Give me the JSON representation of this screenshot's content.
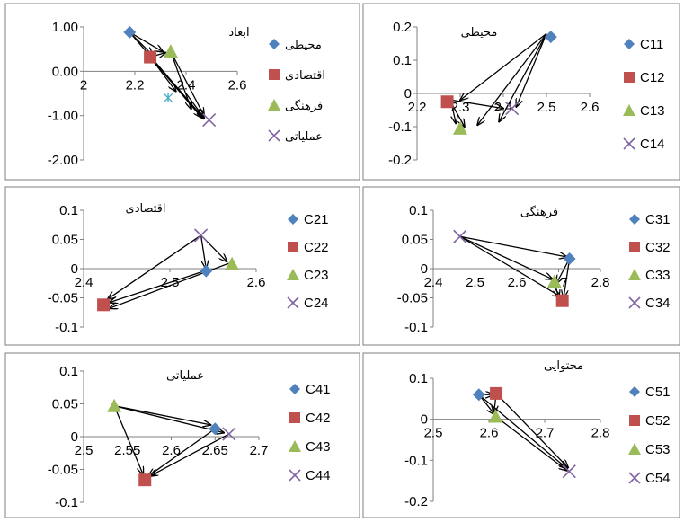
{
  "colors": {
    "series1": "#4f81bd",
    "series2": "#c0504d",
    "series3": "#9bbb59",
    "series4": "#8064a2",
    "arrow": "#000000",
    "frame": "#7f7f7f"
  },
  "chart_data": [
    {
      "type": "scatter",
      "title": "ابعاد",
      "xlabel": "",
      "ylabel": "",
      "xlim": [
        2,
        2.6
      ],
      "ylim": [
        -2,
        1
      ],
      "xticks": [
        "2",
        "2.2",
        "2.4",
        "2.6"
      ],
      "yticks": [
        "1.00",
        "0.00",
        "-1.00",
        "-2.00"
      ],
      "legend_position": "right",
      "series": [
        {
          "name": "محیطی",
          "marker": "diamond",
          "x": 2.18,
          "y": 0.88
        },
        {
          "name": "اقتصادی",
          "marker": "square",
          "x": 2.26,
          "y": 0.32
        },
        {
          "name": "فرهنگی",
          "marker": "triangle",
          "x": 2.34,
          "y": 0.45
        },
        {
          "name": "عملیاتی",
          "marker": "x",
          "x": 2.49,
          "y": -1.1
        }
      ],
      "extra_markers": [
        {
          "marker": "asterisk",
          "x": 2.33,
          "y": -0.6
        }
      ],
      "arrows": [
        [
          2.18,
          0.88,
          2.27,
          0.36
        ],
        [
          2.18,
          0.88,
          2.31,
          0.44
        ],
        [
          2.18,
          0.88,
          2.47,
          -1.07
        ],
        [
          2.26,
          0.32,
          2.32,
          0.42
        ],
        [
          2.26,
          0.32,
          2.36,
          -0.45
        ],
        [
          2.26,
          0.32,
          2.46,
          -1.04
        ],
        [
          2.34,
          0.45,
          2.42,
          -0.85
        ],
        [
          2.34,
          0.45,
          2.47,
          -1.0
        ],
        [
          2.4,
          -0.5,
          2.47,
          -1.05
        ]
      ]
    },
    {
      "type": "scatter",
      "title": "محیطی",
      "xlabel": "",
      "ylabel": "",
      "xlim": [
        2.2,
        2.6
      ],
      "ylim": [
        -0.2,
        0.2
      ],
      "xticks": [
        "2.2",
        "2.3",
        "2.4",
        "2.5",
        "2.6"
      ],
      "yticks": [
        "0.2",
        "0.1",
        "0",
        "-0.1",
        "-0.2"
      ],
      "legend_position": "right",
      "series": [
        {
          "name": "C11",
          "marker": "diamond",
          "x": 2.51,
          "y": 0.17
        },
        {
          "name": "C12",
          "marker": "square",
          "x": 2.27,
          "y": -0.025
        },
        {
          "name": "C13",
          "marker": "triangle",
          "x": 2.3,
          "y": -0.105
        },
        {
          "name": "C14",
          "marker": "x",
          "x": 2.42,
          "y": -0.045
        }
      ],
      "arrows": [
        [
          2.5,
          0.18,
          2.3,
          -0.02
        ],
        [
          2.5,
          0.18,
          2.34,
          -0.095
        ],
        [
          2.5,
          0.18,
          2.39,
          -0.085
        ],
        [
          2.5,
          0.18,
          2.43,
          -0.04
        ],
        [
          2.28,
          -0.02,
          2.4,
          -0.045
        ],
        [
          2.28,
          -0.03,
          2.29,
          -0.09
        ],
        [
          2.28,
          -0.03,
          2.31,
          -0.1
        ]
      ]
    },
    {
      "type": "scatter",
      "title": "اقتصادی",
      "xlabel": "",
      "ylabel": "",
      "xlim": [
        2.4,
        2.6
      ],
      "ylim": [
        -0.1,
        0.1
      ],
      "xticks": [
        "2.4",
        "2.5",
        "2.6"
      ],
      "yticks": [
        "0.1",
        "0.05",
        "0",
        "-0.05",
        "-0.1"
      ],
      "legend_position": "right",
      "series": [
        {
          "name": "C21",
          "marker": "diamond",
          "x": 2.542,
          "y": -0.004
        },
        {
          "name": "C22",
          "marker": "square",
          "x": 2.423,
          "y": -0.062
        },
        {
          "name": "C23",
          "marker": "triangle",
          "x": 2.572,
          "y": 0.008
        },
        {
          "name": "C24",
          "marker": "x",
          "x": 2.536,
          "y": 0.057
        }
      ],
      "arrows": [
        [
          2.536,
          0.057,
          2.428,
          -0.052
        ],
        [
          2.536,
          0.057,
          2.542,
          0.0
        ],
        [
          2.536,
          0.057,
          2.566,
          0.012
        ],
        [
          2.54,
          -0.004,
          2.43,
          -0.058
        ],
        [
          2.57,
          0.01,
          2.43,
          -0.068
        ]
      ]
    },
    {
      "type": "scatter",
      "title": "فرهنگی",
      "xlabel": "",
      "ylabel": "",
      "xlim": [
        2.4,
        2.8
      ],
      "ylim": [
        -0.1,
        0.1
      ],
      "xticks": [
        "2.4",
        "2.5",
        "2.6",
        "2.7",
        "2.8"
      ],
      "yticks": [
        "0.1",
        "0.05",
        "0",
        "-0.05",
        "-0.1"
      ],
      "legend_position": "right",
      "series": [
        {
          "name": "C31",
          "marker": "diamond",
          "x": 2.726,
          "y": 0.017
        },
        {
          "name": "C32",
          "marker": "square",
          "x": 2.709,
          "y": -0.055
        },
        {
          "name": "C33",
          "marker": "triangle",
          "x": 2.69,
          "y": -0.022
        },
        {
          "name": "C34",
          "marker": "x",
          "x": 2.464,
          "y": 0.055
        }
      ],
      "arrows": [
        [
          2.464,
          0.055,
          2.72,
          0.02
        ],
        [
          2.464,
          0.055,
          2.705,
          -0.048
        ],
        [
          2.464,
          0.055,
          2.685,
          -0.018
        ],
        [
          2.726,
          0.017,
          2.695,
          -0.025
        ],
        [
          2.726,
          0.017,
          2.712,
          -0.05
        ],
        [
          2.69,
          -0.022,
          2.7,
          -0.05
        ]
      ]
    },
    {
      "type": "scatter",
      "title": "عملیاتی",
      "xlabel": "",
      "ylabel": "",
      "xlim": [
        2.5,
        2.7
      ],
      "ylim": [
        -0.1,
        0.1
      ],
      "xticks": [
        "2.5",
        "2.55",
        "2.6",
        "2.65",
        "2.7"
      ],
      "yticks": [
        "0.1",
        "0.05",
        "0",
        "-0.05",
        "-0.1"
      ],
      "legend_position": "right",
      "series": [
        {
          "name": "C41",
          "marker": "diamond",
          "x": 2.65,
          "y": 0.012
        },
        {
          "name": "C42",
          "marker": "square",
          "x": 2.57,
          "y": -0.066
        },
        {
          "name": "C43",
          "marker": "triangle",
          "x": 2.535,
          "y": 0.047
        },
        {
          "name": "C44",
          "marker": "x",
          "x": 2.666,
          "y": 0.004
        }
      ],
      "arrows": [
        [
          2.535,
          0.047,
          2.645,
          0.018
        ],
        [
          2.535,
          0.047,
          2.568,
          -0.058
        ],
        [
          2.535,
          0.047,
          2.66,
          0.006
        ],
        [
          2.65,
          0.012,
          2.574,
          -0.06
        ],
        [
          2.666,
          0.004,
          2.576,
          -0.06
        ]
      ]
    },
    {
      "type": "scatter",
      "title": "محتوایی",
      "xlabel": "",
      "ylabel": "",
      "xlim": [
        2.5,
        2.8
      ],
      "ylim": [
        -0.2,
        0.1
      ],
      "xticks": [
        "2.5",
        "2.6",
        "2.7",
        "2.8"
      ],
      "yticks": [
        "0.1",
        "0",
        "-0.1",
        "-0.2"
      ],
      "legend_position": "right",
      "series": [
        {
          "name": "C51",
          "marker": "diamond",
          "x": 2.582,
          "y": 0.06
        },
        {
          "name": "C52",
          "marker": "square",
          "x": 2.613,
          "y": 0.063
        },
        {
          "name": "C53",
          "marker": "triangle",
          "x": 2.612,
          "y": 0.007
        },
        {
          "name": "C54",
          "marker": "x",
          "x": 2.744,
          "y": -0.127
        }
      ],
      "arrows": [
        [
          2.582,
          0.06,
          2.608,
          0.06
        ],
        [
          2.582,
          0.06,
          2.61,
          0.012
        ],
        [
          2.582,
          0.06,
          2.74,
          -0.12
        ],
        [
          2.613,
          0.063,
          2.609,
          0.015
        ],
        [
          2.613,
          0.063,
          2.742,
          -0.118
        ],
        [
          2.612,
          0.007,
          2.74,
          -0.125
        ]
      ]
    }
  ]
}
